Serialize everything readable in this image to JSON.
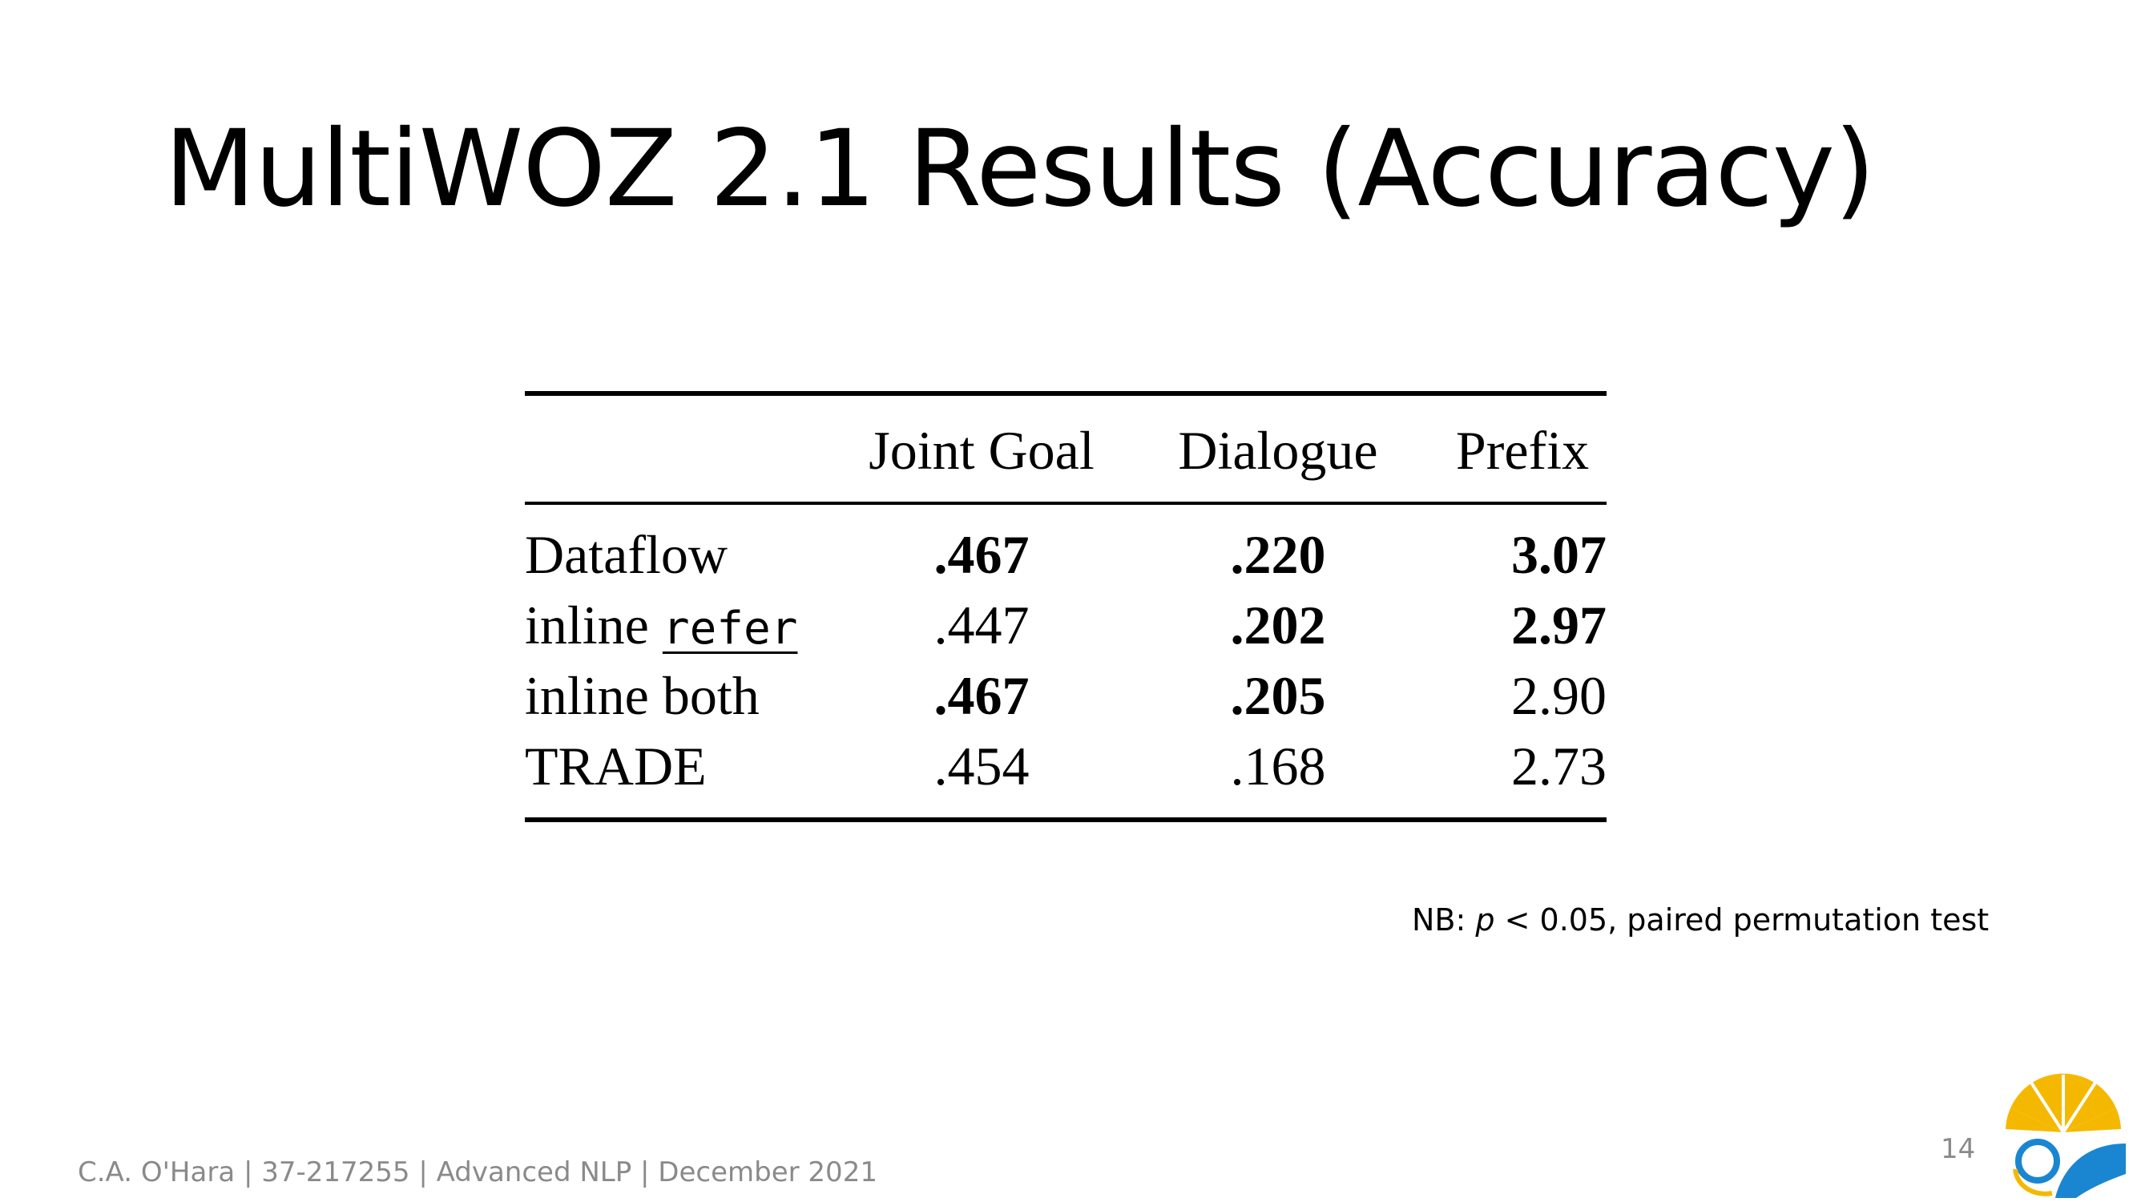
{
  "slide": {
    "title": "MultiWOZ 2.1 Results (Accuracy)",
    "note_prefix": "NB: ",
    "note_var": "p",
    "note_suffix": " < 0.05, paired permutation test",
    "footer": "C.A. O'Hara | 37-217255 | Advanced NLP | December 2021",
    "page_number": "14"
  },
  "table": {
    "headers": [
      "",
      "Joint Goal",
      "Dialogue",
      "Prefix"
    ],
    "rows": [
      {
        "system": "Dataflow",
        "system_code": "",
        "joint_goal": ".467",
        "dialogue": ".220",
        "prefix": "3.07",
        "bold": [
          true,
          true,
          true
        ]
      },
      {
        "system": "inline ",
        "system_code": "refer",
        "joint_goal": ".447",
        "dialogue": ".202",
        "prefix": "2.97",
        "bold": [
          false,
          true,
          true
        ]
      },
      {
        "system": "inline both",
        "system_code": "",
        "joint_goal": ".467",
        "dialogue": ".205",
        "prefix": "2.90",
        "bold": [
          true,
          true,
          false
        ]
      },
      {
        "system": "TRADE",
        "system_code": "",
        "joint_goal": ".454",
        "dialogue": ".168",
        "prefix": "2.73",
        "bold": [
          false,
          false,
          false
        ]
      }
    ]
  },
  "colors": {
    "logo_yellow": "#f5b800",
    "logo_blue": "#1a86d1",
    "footer_gray": "#8a8a8a"
  }
}
